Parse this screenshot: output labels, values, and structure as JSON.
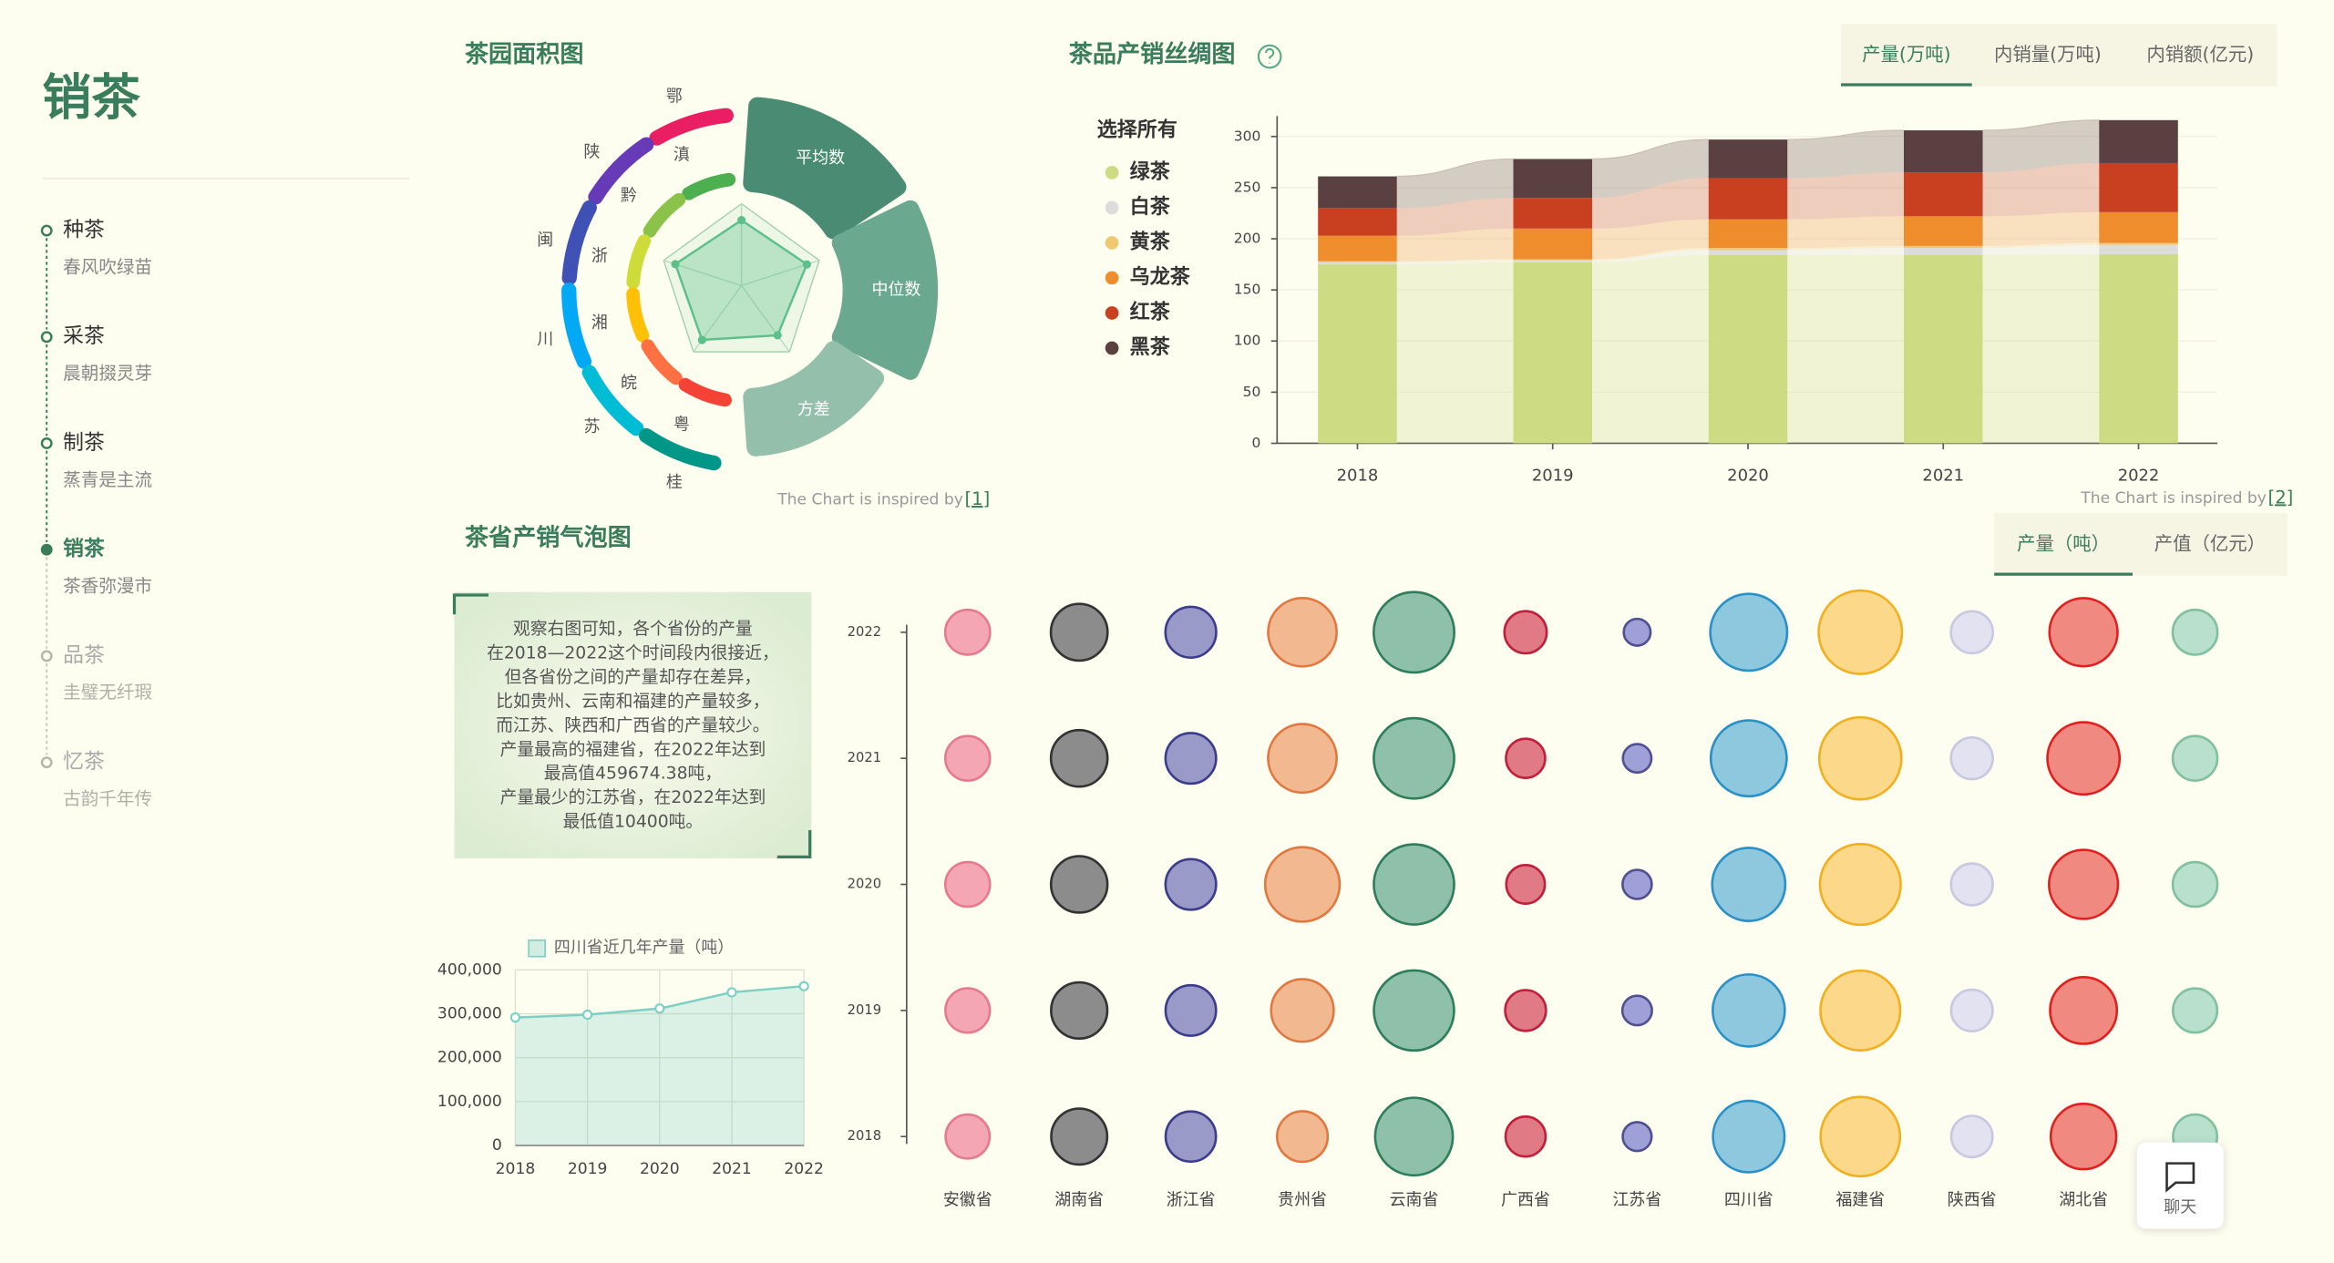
{
  "nav": {
    "title": "销茶",
    "active": 3,
    "items": [
      {
        "label": "种茶",
        "sub": "春风吹绿苗"
      },
      {
        "label": "采茶",
        "sub": "晨朝掇灵芽"
      },
      {
        "label": "制茶",
        "sub": "蒸青是主流"
      },
      {
        "label": "销茶",
        "sub": "茶香弥漫市"
      },
      {
        "label": "品茶",
        "sub": "圭璧无纤瑕"
      },
      {
        "label": "忆茶",
        "sub": "古韵千年传"
      }
    ]
  },
  "chart_data": [
    {
      "type": "polar",
      "title": "茶园面积图",
      "petals": [
        "平均数",
        "中位数",
        "方差"
      ],
      "petal_colors": [
        "#4a8c73",
        "#6aa890",
        "#93bfab"
      ],
      "outer_ring": [
        "鄂",
        "陕",
        "闽",
        "川",
        "苏",
        "桂"
      ],
      "outer_colors": [
        "#e91e63",
        "#673ab7",
        "#3f51b5",
        "#03a9f4",
        "#00bcd4",
        "#009688"
      ],
      "inner_ring": [
        "滇",
        "黔",
        "浙",
        "湘",
        "皖",
        "粤"
      ],
      "inner_colors": [
        "#4caf50",
        "#8bc34a",
        "#cddc39",
        "#ffc107",
        "#ff7043",
        "#f44336"
      ],
      "radar_values": [
        0.8,
        0.84,
        0.75,
        0.82,
        0.85
      ],
      "rlim": [
        0,
        1
      ],
      "radar_color": "#5cc08a",
      "credit": "The Chart is inspired by",
      "ref": "[1]"
    },
    {
      "type": "bar",
      "stacked": true,
      "title": "茶品产销丝绸图",
      "tabs": [
        "产量(万吨)",
        "内销量(万吨)",
        "内销额(亿元)"
      ],
      "active_tab": 0,
      "legend_title": "选择所有",
      "categories": [
        "2018",
        "2019",
        "2020",
        "2021",
        "2022"
      ],
      "series": [
        {
          "name": "绿茶",
          "color": "#cddc82",
          "values": [
            175,
            177,
            184,
            184,
            185
          ]
        },
        {
          "name": "白茶",
          "color": "#dcdcdc",
          "values": [
            2,
            2,
            5,
            7,
            9
          ]
        },
        {
          "name": "黄茶",
          "color": "#f0c870",
          "values": [
            1,
            1,
            2,
            2,
            2
          ]
        },
        {
          "name": "乌龙茶",
          "color": "#ef8c2c",
          "values": [
            25,
            30,
            28,
            29,
            30
          ]
        },
        {
          "name": "红茶",
          "color": "#c84020",
          "values": [
            27,
            30,
            40,
            43,
            48
          ]
        },
        {
          "name": "黑茶",
          "color": "#5a4040",
          "values": [
            31,
            38,
            38,
            41,
            42
          ]
        }
      ],
      "ylim": [
        0,
        320
      ],
      "yticks": [
        0,
        50,
        100,
        150,
        200,
        250,
        300
      ],
      "credit": "The Chart is inspired by",
      "ref": "[2]"
    },
    {
      "type": "bubble",
      "title": "茶省产销气泡图",
      "tabs": [
        "产量（吨）",
        "产值（亿元）"
      ],
      "active_tab": 0,
      "note_lines": [
        "观察右图可知，各个省份的产量",
        "在2018—2022这个时间段内很接近，",
        "但各省份之间的产量却存在差异，",
        "比如贵州、云南和福建的产量较多，",
        "而江苏、陕西和广西省的产量较少。",
        "产量最高的福建省，在2022年达到",
        "最高值459674.38吨，",
        "产量最少的江苏省，在2022年达到",
        "最低值10400吨。"
      ],
      "categories": [
        "安徽省",
        "湖南省",
        "浙江省",
        "贵州省",
        "云南省",
        "广西省",
        "江苏省",
        "四川省",
        "福建省",
        "陕西省",
        "湖北省",
        null
      ],
      "y_categories": [
        "2018",
        "2019",
        "2020",
        "2021",
        "2022"
      ],
      "values": [
        [
          52000,
          54000,
          55000,
          55000,
          56000
        ],
        [
          130000,
          132000,
          134000,
          135000,
          136000
        ],
        [
          88000,
          89000,
          90000,
          90000,
          91000
        ],
        [
          90000,
          190000,
          330000,
          255000,
          254000
        ],
        [
          374000,
          410000,
          412000,
          414000,
          416000
        ],
        [
          35000,
          38000,
          30000,
          32000,
          44000
        ],
        [
          11000,
          11500,
          11200,
          10800,
          10400
        ],
        [
          291500,
          298000,
          312000,
          349000,
          363000
        ],
        [
          400000,
          405000,
          420000,
          440000,
          459674.38
        ],
        [
          40000,
          41000,
          42000,
          42000,
          43000
        ],
        [
          220000,
          235000,
          260000,
          300000,
          250000
        ],
        [
          52000,
          53000,
          55000,
          55000,
          56000
        ]
      ],
      "colors": [
        "#f4a6b4",
        "#8c8c8c",
        "#9a9ac8",
        "#f2b890",
        "#8fc0a9",
        "#e07a85",
        "#a0a0d8",
        "#8ec8de",
        "#fcd98a",
        "#e2e2f0",
        "#f08a80",
        "#b8e0cc"
      ],
      "stroke_colors": [
        "#e57a90",
        "#333333",
        "#3c3c8c",
        "#e07840",
        "#2e7d5b",
        "#c0203a",
        "#505090",
        "#2a90c8",
        "#f0b020",
        "#c8c8e0",
        "#e02020",
        "#80c0a0"
      ]
    },
    {
      "type": "line",
      "area": true,
      "categories": [
        "2018",
        "2019",
        "2020",
        "2021",
        "2022"
      ],
      "series": [
        {
          "name": "四川省近几年产量（吨）",
          "color": "#7ccfc4",
          "values": [
            291500,
            298000,
            312000,
            349000,
            363000
          ]
        }
      ],
      "ylim": [
        0,
        400000
      ],
      "yticks": [
        0,
        {
          "value": 100000,
          "label": "100,000"
        },
        {
          "value": 200000,
          "label": "200,000"
        },
        {
          "value": 300000,
          "label": "300,000"
        },
        {
          "value": 400000,
          "label": "400,000"
        }
      ],
      "grid": true
    }
  ],
  "chat": {
    "label": "聊天"
  }
}
